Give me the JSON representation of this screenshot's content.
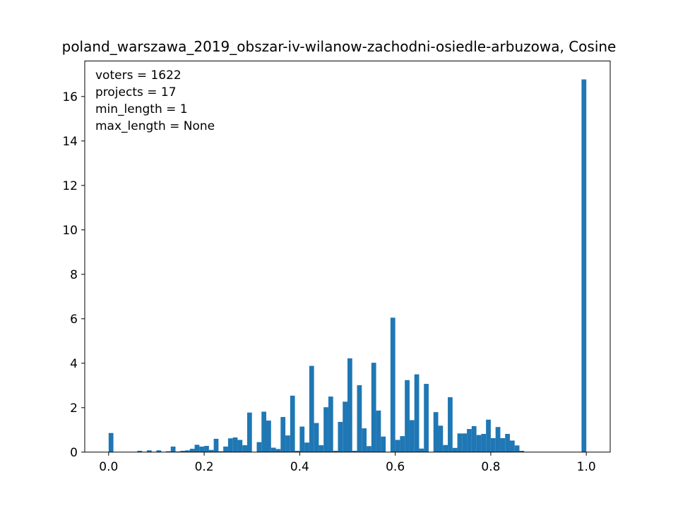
{
  "chart_data": {
    "type": "bar",
    "title": "poland_warszawa_2019_obszar-iv-wilanow-zachodni-osiedle-arbuzowa, Cosine",
    "xlabel": "",
    "ylabel": "",
    "xlim": [
      -0.05,
      1.05
    ],
    "ylim": [
      0,
      17.6
    ],
    "xticks": [
      0.0,
      0.2,
      0.4,
      0.6,
      0.8,
      1.0
    ],
    "xtick_labels": [
      "0.0",
      "0.2",
      "0.4",
      "0.6",
      "0.8",
      "1.0"
    ],
    "yticks": [
      0,
      2,
      4,
      6,
      8,
      10,
      12,
      14,
      16
    ],
    "ytick_labels": [
      "0",
      "2",
      "4",
      "6",
      "8",
      "10",
      "12",
      "14",
      "16"
    ],
    "bin_width": 0.01,
    "bar_color": "#1f77b4",
    "annotations": [
      "voters = 1622",
      "projects = 17",
      "min_length = 1",
      "max_length = None"
    ],
    "annotation_placement": "top-left",
    "bins": [
      [
        0.0,
        0.86
      ],
      [
        0.06,
        0.06
      ],
      [
        0.08,
        0.08
      ],
      [
        0.1,
        0.08
      ],
      [
        0.12,
        0.04
      ],
      [
        0.13,
        0.25
      ],
      [
        0.14,
        0.03
      ],
      [
        0.15,
        0.06
      ],
      [
        0.16,
        0.08
      ],
      [
        0.17,
        0.15
      ],
      [
        0.18,
        0.33
      ],
      [
        0.19,
        0.25
      ],
      [
        0.2,
        0.28
      ],
      [
        0.21,
        0.1
      ],
      [
        0.22,
        0.6
      ],
      [
        0.23,
        0.04
      ],
      [
        0.24,
        0.25
      ],
      [
        0.25,
        0.62
      ],
      [
        0.26,
        0.66
      ],
      [
        0.27,
        0.55
      ],
      [
        0.28,
        0.31
      ],
      [
        0.29,
        1.78
      ],
      [
        0.31,
        0.45
      ],
      [
        0.32,
        1.82
      ],
      [
        0.33,
        1.42
      ],
      [
        0.34,
        0.2
      ],
      [
        0.35,
        0.14
      ],
      [
        0.36,
        1.58
      ],
      [
        0.37,
        0.75
      ],
      [
        0.38,
        2.54
      ],
      [
        0.39,
        0.06
      ],
      [
        0.4,
        1.15
      ],
      [
        0.41,
        0.43
      ],
      [
        0.42,
        3.88
      ],
      [
        0.43,
        1.31
      ],
      [
        0.44,
        0.31
      ],
      [
        0.45,
        2.02
      ],
      [
        0.46,
        2.5
      ],
      [
        0.47,
        0.06
      ],
      [
        0.48,
        1.36
      ],
      [
        0.49,
        2.27
      ],
      [
        0.5,
        4.22
      ],
      [
        0.51,
        0.06
      ],
      [
        0.52,
        3.01
      ],
      [
        0.53,
        1.07
      ],
      [
        0.54,
        0.27
      ],
      [
        0.55,
        4.02
      ],
      [
        0.56,
        1.87
      ],
      [
        0.57,
        0.7
      ],
      [
        0.59,
        6.05
      ],
      [
        0.6,
        0.55
      ],
      [
        0.61,
        0.72
      ],
      [
        0.62,
        3.24
      ],
      [
        0.63,
        1.44
      ],
      [
        0.64,
        3.5
      ],
      [
        0.65,
        0.16
      ],
      [
        0.66,
        3.07
      ],
      [
        0.68,
        1.8
      ],
      [
        0.69,
        1.19
      ],
      [
        0.7,
        0.32
      ],
      [
        0.71,
        2.47
      ],
      [
        0.72,
        0.19
      ],
      [
        0.73,
        0.84
      ],
      [
        0.74,
        0.84
      ],
      [
        0.75,
        1.04
      ],
      [
        0.76,
        1.17
      ],
      [
        0.77,
        0.77
      ],
      [
        0.78,
        0.82
      ],
      [
        0.79,
        1.46
      ],
      [
        0.8,
        0.63
      ],
      [
        0.81,
        1.13
      ],
      [
        0.82,
        0.63
      ],
      [
        0.83,
        0.82
      ],
      [
        0.84,
        0.52
      ],
      [
        0.85,
        0.3
      ],
      [
        0.86,
        0.06
      ],
      [
        0.99,
        16.77
      ]
    ]
  }
}
